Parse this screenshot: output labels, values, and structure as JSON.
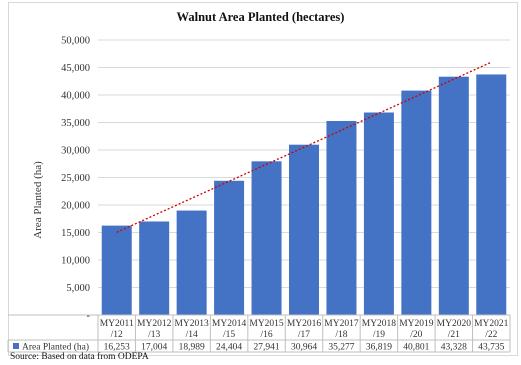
{
  "chart_data": {
    "type": "bar",
    "title": "Walnut Area Planted (hectares)",
    "ylabel": "Area Planted (ha)",
    "xlabel": "",
    "categories": [
      [
        "MY2011",
        "/12"
      ],
      [
        "MY2012",
        "/13"
      ],
      [
        "MY2013",
        "/14"
      ],
      [
        "MY2014",
        "/15"
      ],
      [
        "MY2015",
        "/16"
      ],
      [
        "MY2016",
        "/17"
      ],
      [
        "MY2017",
        "/18"
      ],
      [
        "MY2018",
        "/19"
      ],
      [
        "MY2019",
        "/20"
      ],
      [
        "MY2020",
        "/21"
      ],
      [
        "MY2021",
        "/22"
      ]
    ],
    "series": [
      {
        "name": "Area Planted (ha)",
        "color": "#4472c4",
        "values": [
          16253,
          17004,
          18989,
          24404,
          27941,
          30964,
          35277,
          36819,
          40801,
          43328,
          43735
        ],
        "value_labels": [
          "16,253",
          "17,004",
          "18,989",
          "24,404",
          "27,941",
          "30,964",
          "35,277",
          "36,819",
          "40,801",
          "43,328",
          "43,735"
        ]
      }
    ],
    "ylim": [
      0,
      50000
    ],
    "yticks": [
      0,
      5000,
      10000,
      15000,
      20000,
      25000,
      30000,
      35000,
      40000,
      45000,
      50000
    ],
    "ytick_labels": [
      "-",
      "5,000",
      "10,000",
      "15,000",
      "20,000",
      "25,000",
      "30,000",
      "35,000",
      "40,000",
      "45,000",
      "50,000"
    ],
    "trendline": {
      "type": "linear",
      "color": "#d00000",
      "style": "dotted"
    },
    "grid": true,
    "legend": "data-table"
  },
  "source_note": "Source: Based on data from ODEPA"
}
